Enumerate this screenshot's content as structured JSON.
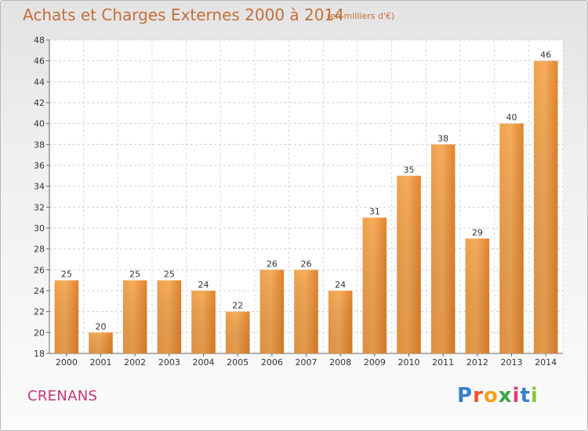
{
  "chart_data": {
    "type": "bar",
    "title": "Achats et Charges Externes 2000 à 2014",
    "subtitle": "(en milliers d'€)",
    "categories": [
      "2000",
      "2001",
      "2002",
      "2003",
      "2004",
      "2005",
      "2006",
      "2007",
      "2008",
      "2009",
      "2010",
      "2011",
      "2012",
      "2013",
      "2014"
    ],
    "values": [
      25,
      20,
      25,
      25,
      24,
      22,
      26,
      26,
      24,
      31,
      35,
      38,
      29,
      40,
      46
    ],
    "ylim": [
      18,
      48
    ],
    "yticks": [
      18,
      20,
      22,
      24,
      26,
      28,
      30,
      32,
      34,
      36,
      38,
      40,
      42,
      44,
      46,
      48
    ],
    "grid": true,
    "bar_color": "#e8893a"
  },
  "commune": "CRENANS",
  "logo": {
    "text": "Proxiti",
    "letter_colors": [
      "#3a7fc7",
      "#e8572a",
      "#f2a11f",
      "#3aa64a",
      "#e23a7a",
      "#3a7fc7",
      "#8bc53f"
    ]
  }
}
